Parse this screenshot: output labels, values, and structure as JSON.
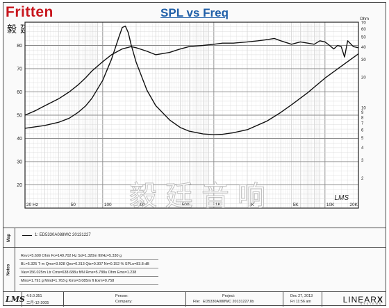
{
  "logo": {
    "wordmark": "ritten",
    "wordmark_initial": "F",
    "chinese": "毅廷音响"
  },
  "chart_data": {
    "type": "line",
    "title": "SPL vs Freq",
    "x_scale": "log",
    "xlim": [
      20,
      20000
    ],
    "ylim_left": [
      10,
      90
    ],
    "ylim_right": [
      1,
      70
    ],
    "y_right_scale": "log",
    "right_axis_unit": "Ohm",
    "x_ticks": [
      "20 Hz",
      "50",
      "100",
      "200",
      "500",
      "1K",
      "2K",
      "5K",
      "10K",
      "20K"
    ],
    "x_tick_values": [
      20,
      50,
      100,
      200,
      500,
      1000,
      2000,
      5000,
      10000,
      20000
    ],
    "y_left_ticks": [
      20,
      30,
      40,
      50,
      60,
      70,
      80
    ],
    "y_right_ticks": [
      2,
      3,
      4,
      5,
      6,
      7,
      8,
      9,
      10,
      20,
      30,
      40,
      50,
      60,
      70
    ],
    "grid": true,
    "series": [
      {
        "name": "1: ED5330A088WC 20131227",
        "kind": "spl",
        "axis": "left",
        "x": [
          20,
          25,
          30,
          40,
          50,
          60,
          70,
          80,
          100,
          120,
          150,
          180,
          200,
          250,
          300,
          400,
          500,
          600,
          800,
          1000,
          1200,
          1500,
          2000,
          2500,
          3000,
          3500,
          4000,
          5000,
          6000,
          7000,
          8000,
          9000,
          10000,
          11000,
          12000,
          13000,
          14000,
          15000,
          16000,
          18000,
          20000
        ],
        "y": [
          50,
          52,
          54,
          57,
          60,
          63,
          66,
          69,
          73,
          76,
          78.5,
          79.5,
          79,
          77.5,
          76,
          77,
          78.5,
          79.5,
          80,
          80.5,
          81,
          81,
          81.5,
          82,
          82.5,
          83,
          82,
          80.5,
          81.5,
          81,
          80.5,
          82,
          81.5,
          80,
          78.5,
          80,
          79.5,
          75,
          82,
          79.5,
          79
        ]
      },
      {
        "name": "Impedance",
        "kind": "impedance",
        "axis": "right",
        "x": [
          20,
          30,
          40,
          50,
          60,
          70,
          80,
          100,
          120,
          140,
          150,
          160,
          170,
          180,
          200,
          250,
          300,
          400,
          500,
          600,
          800,
          1000,
          1200,
          1500,
          2000,
          3000,
          4000,
          5000,
          7000,
          10000,
          15000,
          20000
        ],
        "y": [
          6.2,
          6.6,
          7.1,
          7.8,
          8.9,
          10.3,
          12.3,
          18.5,
          30,
          50,
          62,
          64,
          55,
          42,
          28,
          14.8,
          10.4,
          7.5,
          6.3,
          5.8,
          5.45,
          5.35,
          5.4,
          5.6,
          6.0,
          7.3,
          8.9,
          10.6,
          14,
          19.5,
          27,
          34
        ]
      }
    ]
  },
  "axis_tag": "LMS",
  "watermark": "毅廷音响",
  "legend": {
    "section": "Map",
    "entry": "1: ED5330A088WC 20131227"
  },
  "notes": {
    "section": "Notes",
    "lines": [
      "Revc=5.600 Ohm  Fo=149.702 Hz  Sd=1.320m ftf/Hz=5.330 g",
      "BL=5.325 T·m  Qms=3.928  Qes=0.313  Qts=0.307  Nr=0.152 %  SPLo=83.8 dB",
      "Vas=156.025m Ltr  Cms=638.688u ft/N  Rms=5.788u Ohm  Ems=1.238",
      "Mms=1.791 g  Mmd=1.763 g  Kms=3.085m ft  Exm=0.758"
    ]
  },
  "footer": {
    "logo": "LMS",
    "version": "4.5.0.351",
    "version_date": "二月-12-2005",
    "person_label": "Person:",
    "company_label": "Company:",
    "project_label": "Project:",
    "file_label": "File:",
    "file_name": "ED5330A088WC 20131227.lib",
    "date": "Dec 27, 2013",
    "time": "Fri 11:56 am",
    "brand_main": "LINEAR",
    "brand_x": "X",
    "brand_sub": "SYSTEMS"
  }
}
